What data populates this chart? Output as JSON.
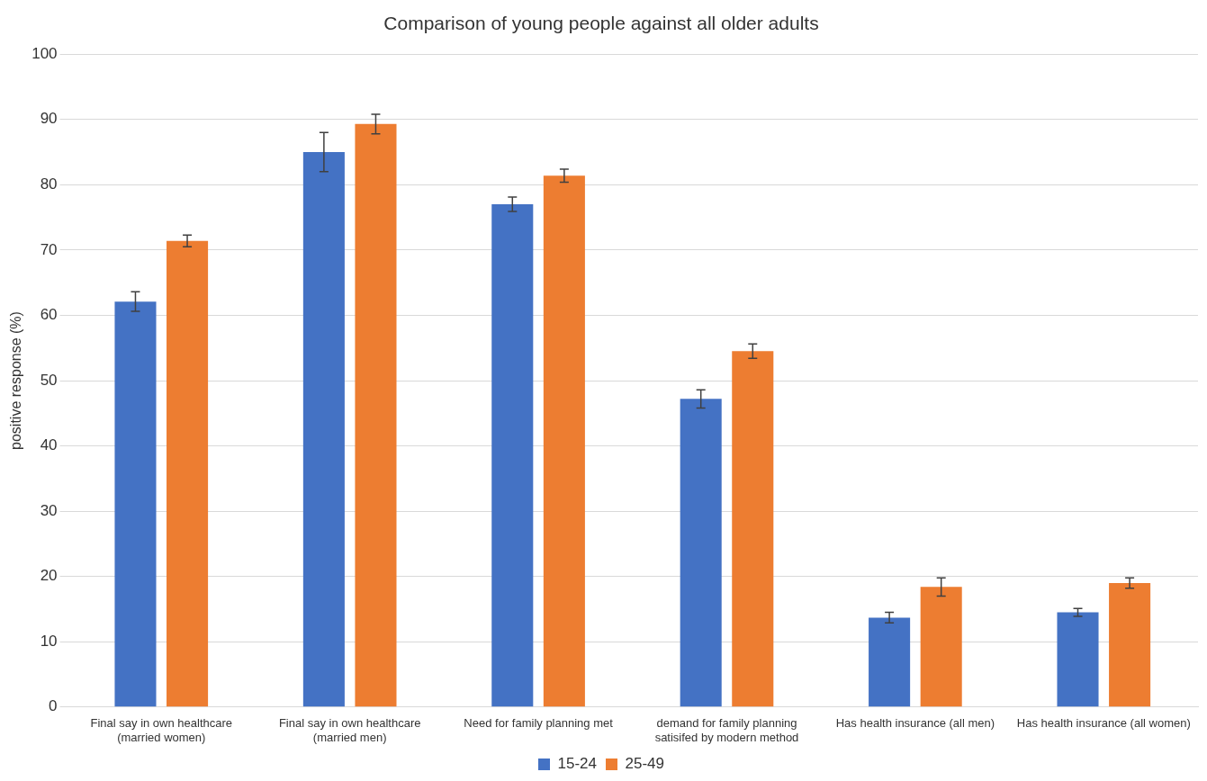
{
  "chart_data": {
    "type": "bar",
    "title": "Comparison of young people against all older adults",
    "ylabel": "positive response (%)",
    "categories": [
      "Final say in own healthcare (married women)",
      "Final say in own healthcare (married men)",
      "Need for family planning met",
      "demand for family planning satisifed by modern method",
      "Has health insurance (all men)",
      "Has health insurance (all women)"
    ],
    "series": [
      {
        "name": "15-24",
        "color": "#4472c4",
        "values": [
          62.1,
          85.0,
          77.0,
          47.2,
          13.7,
          14.5
        ],
        "errors": [
          1.5,
          3.0,
          1.1,
          1.4,
          0.8,
          0.6
        ]
      },
      {
        "name": "25-49",
        "color": "#ed7d31",
        "values": [
          71.4,
          89.3,
          81.4,
          54.5,
          18.4,
          19.0
        ],
        "errors": [
          0.9,
          1.5,
          1.0,
          1.1,
          1.4,
          0.8
        ]
      }
    ],
    "ylim": [
      0,
      100
    ],
    "yticks": [
      0,
      10,
      20,
      30,
      40,
      50,
      60,
      70,
      80,
      90,
      100
    ],
    "grid": "y",
    "legend": "bottom"
  }
}
